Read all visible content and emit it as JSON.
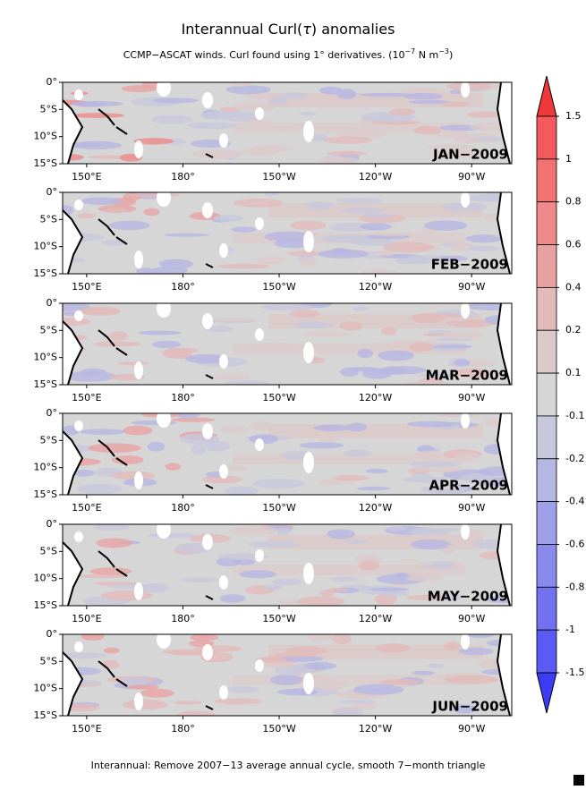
{
  "chart_data": {
    "type": "map",
    "title": [
      "Interannual Curl(",
      "τ",
      ") anomalies"
    ],
    "subtitle": [
      "CCMP−ASCAT winds. Curl found using 1° derivatives. (10",
      "−7",
      " N m",
      "−3",
      ")"
    ],
    "panels": [
      "JAN−2009",
      "FEB−2009",
      "MAR−2009",
      "APR−2009",
      "MAY−2009",
      "JUN−2009"
    ],
    "xlim": [
      142.5,
      282.5
    ],
    "xticks": [
      {
        "value": 150,
        "label": "150°E"
      },
      {
        "value": 180,
        "label": "180°"
      },
      {
        "value": 210,
        "label": "150°W"
      },
      {
        "value": 240,
        "label": "120°W"
      },
      {
        "value": 270,
        "label": "90°W"
      }
    ],
    "ylim": [
      -15,
      0
    ],
    "yticks": [
      {
        "value": 0,
        "label": "0°"
      },
      {
        "value": -5,
        "label": "5°S"
      },
      {
        "value": -10,
        "label": "10°S"
      },
      {
        "value": -15,
        "label": "15°S"
      }
    ],
    "colorbar": {
      "ticks": [
        1.5,
        1,
        0.8,
        0.6,
        0.4,
        0.2,
        0.1,
        -0.1,
        -0.2,
        -0.4,
        -0.6,
        -0.8,
        -1,
        -1.5
      ],
      "colors": [
        "#f0383c",
        "#f25a5e",
        "#f27272",
        "#ee8a8a",
        "#e8a2a2",
        "#e2baba",
        "#dccaca",
        "#d6d6d6",
        "#c8c8dc",
        "#b6b6e2",
        "#a0a0e8",
        "#8a8aec",
        "#7272f0",
        "#5a5af4",
        "#3c3cf6"
      ]
    },
    "footer": "Interannual: Remove 2007−13 average annual cycle, smooth 7−month triangle"
  }
}
